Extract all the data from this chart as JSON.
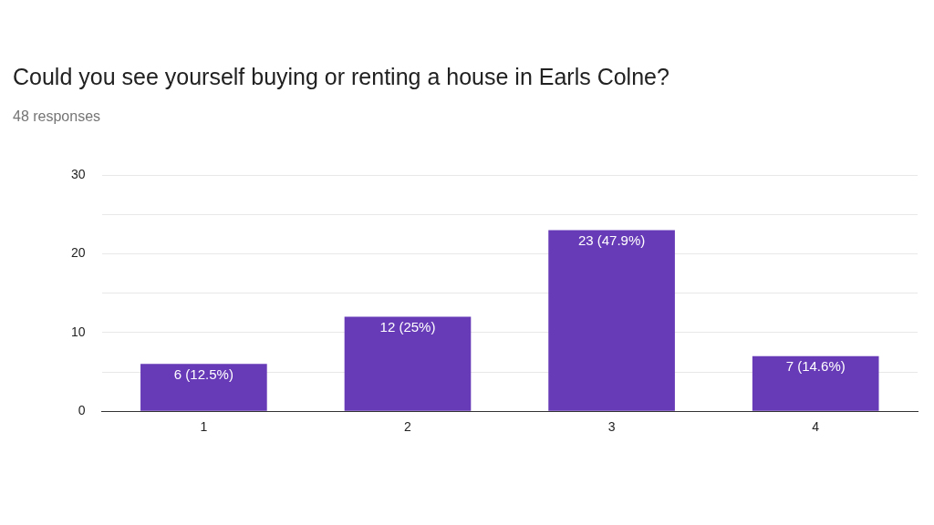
{
  "chart_data": {
    "type": "bar",
    "title": "Could you see yourself buying or renting a house in Earls Colne?",
    "subtitle": "48 responses",
    "categories": [
      "1",
      "2",
      "3",
      "4"
    ],
    "values": [
      6,
      12,
      23,
      7
    ],
    "value_labels": [
      "6 (12.5%)",
      "12 (25%)",
      "23 (47.9%)",
      "7 (14.6%)"
    ],
    "color": "#673ab7",
    "ylim": [
      0,
      30
    ],
    "yticks": [
      0,
      {
        "value": 5,
        "label": null
      },
      10,
      {
        "value": 15,
        "label": null
      },
      20,
      {
        "value": 25,
        "label": null
      },
      30
    ],
    "grid": "y",
    "legend": false
  }
}
